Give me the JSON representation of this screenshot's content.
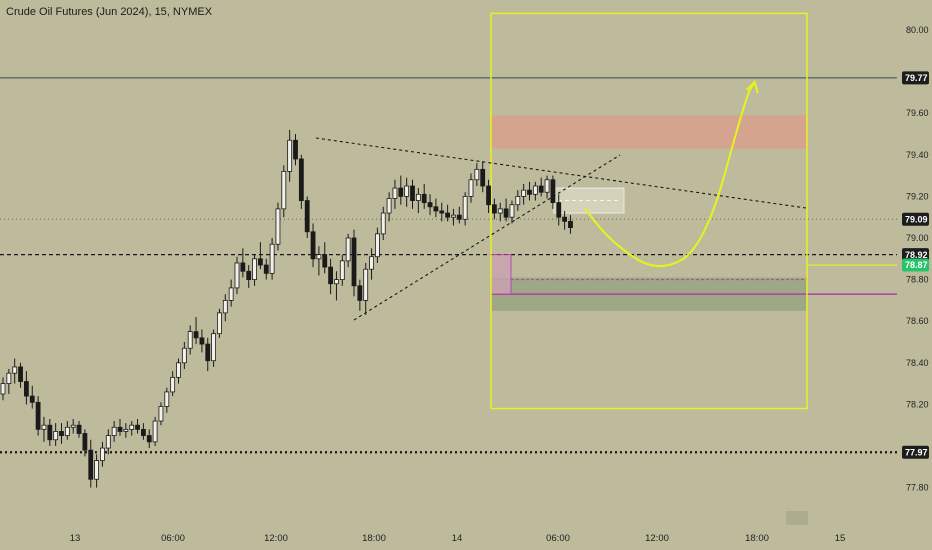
{
  "title": "Crude Oil Futures (Jun 2024), 15, NYMEX",
  "colors": {
    "background": "#bdbb9c",
    "candle_body": "#f2f1ea",
    "candle_outline": "#1a1a1a",
    "trendline": "#1a1a1a",
    "projection": "#e8f31e",
    "target_box": "#e8f31e",
    "resistance_zone": "#d8a08c",
    "support_zone": "#9aa483",
    "marker_line": "#b43bb4",
    "current_price_badge": "#1d1d1d",
    "green_badge": "#26c46a"
  },
  "chart_data": {
    "type": "candlestick",
    "ylim": [
      77.6,
      80.05
    ],
    "y_ticks": [
      "80.00",
      "79.60",
      "79.40",
      "79.20",
      "79.00",
      "78.80",
      "78.60",
      "78.40",
      "78.20",
      "77.80"
    ],
    "x_ticks": [
      "13",
      "06:00",
      "12:00",
      "18:00",
      "14",
      "06:00",
      "12:00",
      "18:00",
      "15"
    ],
    "price_badges": [
      {
        "label": "79.77",
        "price": 79.77,
        "style": "dark"
      },
      {
        "label": "79.09",
        "price": 79.09,
        "style": "dark"
      },
      {
        "label": "78.92",
        "price": 78.92,
        "style": "dark"
      },
      {
        "label": "78.87",
        "price": 78.87,
        "style": "green"
      },
      {
        "label": "77.97",
        "price": 77.97,
        "style": "dark"
      }
    ],
    "horizontal_lines": [
      {
        "price": 79.77,
        "style": "solid"
      },
      {
        "price": 79.09,
        "style": "dotted"
      },
      {
        "price": 78.92,
        "style": "dashed"
      },
      {
        "price": 77.97,
        "style": "dotted-heavy"
      }
    ],
    "zones": [
      {
        "name": "resistance",
        "from": 79.43,
        "to": 79.59
      },
      {
        "name": "support",
        "from": 78.65,
        "to": 78.81
      }
    ],
    "candles": [
      [
        78.25,
        78.33,
        78.22,
        78.3
      ],
      [
        78.3,
        78.37,
        78.25,
        78.35
      ],
      [
        78.35,
        78.42,
        78.3,
        78.38
      ],
      [
        78.38,
        78.4,
        78.28,
        78.31
      ],
      [
        78.31,
        78.36,
        78.2,
        78.24
      ],
      [
        78.24,
        78.29,
        78.18,
        78.21
      ],
      [
        78.21,
        78.24,
        78.05,
        78.08
      ],
      [
        78.08,
        78.14,
        78.02,
        78.1
      ],
      [
        78.1,
        78.13,
        78.0,
        78.03
      ],
      [
        78.03,
        78.11,
        78.0,
        78.07
      ],
      [
        78.07,
        78.11,
        78.01,
        78.05
      ],
      [
        78.05,
        78.12,
        78.03,
        78.09
      ],
      [
        78.09,
        78.13,
        78.06,
        78.1
      ],
      [
        78.1,
        78.12,
        78.04,
        78.06
      ],
      [
        78.06,
        78.08,
        77.95,
        77.98
      ],
      [
        77.98,
        78.03,
        77.8,
        77.84
      ],
      [
        77.84,
        77.96,
        77.8,
        77.93
      ],
      [
        77.93,
        78.02,
        77.9,
        77.99
      ],
      [
        77.99,
        78.08,
        77.96,
        78.05
      ],
      [
        78.05,
        78.12,
        78.02,
        78.09
      ],
      [
        78.09,
        78.13,
        78.05,
        78.07
      ],
      [
        78.07,
        78.11,
        78.04,
        78.08
      ],
      [
        78.08,
        78.12,
        78.05,
        78.1
      ],
      [
        78.1,
        78.13,
        78.06,
        78.08
      ],
      [
        78.08,
        78.11,
        78.03,
        78.05
      ],
      [
        78.05,
        78.08,
        77.99,
        78.02
      ],
      [
        78.02,
        78.14,
        78.0,
        78.12
      ],
      [
        78.12,
        78.21,
        78.1,
        78.19
      ],
      [
        78.19,
        78.28,
        78.16,
        78.26
      ],
      [
        78.26,
        78.36,
        78.24,
        78.33
      ],
      [
        78.33,
        78.42,
        78.3,
        78.4
      ],
      [
        78.4,
        78.5,
        78.37,
        78.47
      ],
      [
        78.47,
        78.58,
        78.44,
        78.55
      ],
      [
        78.55,
        78.62,
        78.49,
        78.52
      ],
      [
        78.52,
        78.56,
        78.45,
        78.49
      ],
      [
        78.49,
        78.52,
        78.36,
        78.41
      ],
      [
        78.41,
        78.56,
        78.38,
        78.54
      ],
      [
        78.54,
        78.66,
        78.52,
        78.64
      ],
      [
        78.64,
        78.73,
        78.6,
        78.7
      ],
      [
        78.7,
        78.8,
        78.67,
        78.76
      ],
      [
        78.76,
        78.91,
        78.73,
        78.88
      ],
      [
        78.88,
        78.95,
        78.81,
        78.84
      ],
      [
        78.84,
        78.87,
        78.76,
        78.8
      ],
      [
        78.8,
        78.92,
        78.77,
        78.9
      ],
      [
        78.9,
        78.98,
        78.85,
        78.87
      ],
      [
        78.87,
        78.9,
        78.8,
        78.83
      ],
      [
        78.83,
        79.0,
        78.8,
        78.97
      ],
      [
        78.97,
        79.17,
        78.94,
        79.14
      ],
      [
        79.14,
        79.35,
        79.1,
        79.32
      ],
      [
        79.32,
        79.52,
        79.27,
        79.47
      ],
      [
        79.47,
        79.5,
        79.35,
        79.38
      ],
      [
        79.38,
        79.4,
        79.14,
        79.18
      ],
      [
        79.18,
        79.2,
        79.0,
        79.03
      ],
      [
        79.03,
        79.07,
        78.86,
        78.9
      ],
      [
        78.9,
        78.96,
        78.82,
        78.92
      ],
      [
        78.92,
        78.98,
        78.83,
        78.86
      ],
      [
        78.86,
        78.9,
        78.73,
        78.78
      ],
      [
        78.78,
        78.84,
        78.7,
        78.8
      ],
      [
        78.8,
        78.92,
        78.77,
        78.89
      ],
      [
        78.89,
        79.02,
        78.86,
        79.0
      ],
      [
        79.0,
        79.04,
        78.72,
        78.77
      ],
      [
        78.77,
        78.8,
        78.65,
        78.7
      ],
      [
        78.7,
        78.88,
        78.63,
        78.85
      ],
      [
        78.85,
        78.95,
        78.8,
        78.91
      ],
      [
        78.91,
        79.05,
        78.88,
        79.02
      ],
      [
        79.02,
        79.15,
        78.99,
        79.12
      ],
      [
        79.12,
        79.22,
        79.08,
        79.19
      ],
      [
        79.19,
        79.28,
        79.14,
        79.24
      ],
      [
        79.24,
        79.3,
        79.16,
        79.2
      ],
      [
        79.2,
        79.29,
        79.15,
        79.25
      ],
      [
        79.25,
        79.28,
        79.14,
        79.18
      ],
      [
        79.18,
        79.24,
        79.12,
        79.21
      ],
      [
        79.21,
        79.26,
        79.14,
        79.17
      ],
      [
        79.17,
        79.21,
        79.11,
        79.15
      ],
      [
        79.15,
        79.19,
        79.1,
        79.13
      ],
      [
        79.13,
        79.17,
        79.08,
        79.12
      ],
      [
        79.12,
        79.16,
        79.08,
        79.1
      ],
      [
        79.1,
        79.14,
        79.06,
        79.11
      ],
      [
        79.11,
        79.15,
        79.07,
        79.09
      ],
      [
        79.09,
        79.22,
        79.06,
        79.2
      ],
      [
        79.2,
        79.31,
        79.17,
        79.28
      ],
      [
        79.28,
        79.36,
        79.25,
        79.33
      ],
      [
        79.33,
        79.37,
        79.22,
        79.25
      ],
      [
        79.25,
        79.28,
        79.12,
        79.16
      ],
      [
        79.16,
        79.19,
        79.09,
        79.12
      ],
      [
        79.12,
        79.17,
        79.08,
        79.14
      ],
      [
        79.14,
        79.19,
        79.08,
        79.1
      ],
      [
        79.1,
        79.18,
        79.07,
        79.16
      ],
      [
        79.16,
        79.23,
        79.13,
        79.2
      ],
      [
        79.2,
        79.26,
        79.16,
        79.23
      ],
      [
        79.23,
        79.27,
        79.18,
        79.21
      ],
      [
        79.21,
        79.27,
        79.18,
        79.25
      ],
      [
        79.25,
        79.29,
        79.2,
        79.22
      ],
      [
        79.22,
        79.3,
        79.19,
        79.28
      ],
      [
        79.28,
        79.3,
        79.14,
        79.17
      ],
      [
        79.17,
        79.21,
        79.06,
        79.1
      ],
      [
        79.1,
        79.13,
        79.04,
        79.08
      ],
      [
        79.08,
        79.11,
        79.02,
        79.05
      ]
    ],
    "projection_path": [
      {
        "t": 99.5,
        "p": 79.14
      },
      {
        "t": 104,
        "p": 78.98
      },
      {
        "t": 112,
        "p": 78.83
      },
      {
        "t": 120,
        "p": 78.96
      },
      {
        "t": 127,
        "p": 79.68
      },
      {
        "t": 128.5,
        "p": 79.75
      }
    ]
  }
}
